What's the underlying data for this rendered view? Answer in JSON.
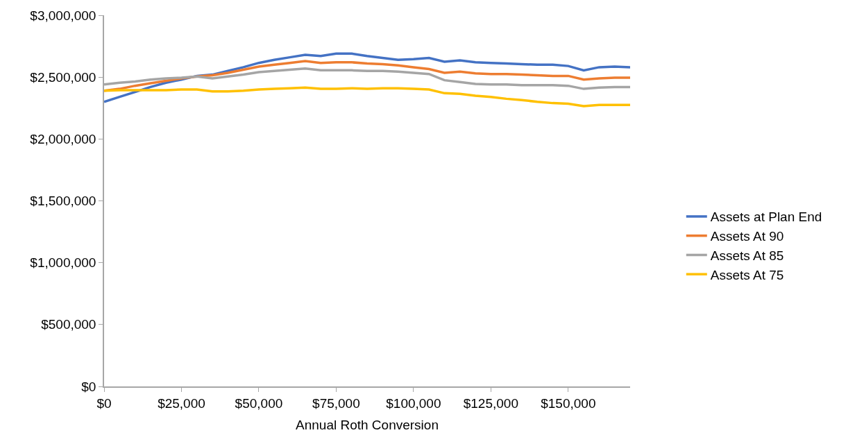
{
  "chart_data": {
    "type": "line",
    "xlabel": "Annual Roth Conversion",
    "x": [
      0,
      5000,
      10000,
      15000,
      20000,
      25000,
      30000,
      35000,
      40000,
      45000,
      50000,
      55000,
      60000,
      65000,
      70000,
      75000,
      80000,
      85000,
      90000,
      95000,
      100000,
      105000,
      110000,
      115000,
      120000,
      125000,
      130000,
      135000,
      140000,
      145000,
      150000,
      155000,
      160000,
      165000,
      170000
    ],
    "series": [
      {
        "name": "Assets at Plan End",
        "color": "#4472c4",
        "values": [
          2300000,
          2340000,
          2380000,
          2420000,
          2455000,
          2480000,
          2510000,
          2520000,
          2550000,
          2580000,
          2615000,
          2640000,
          2660000,
          2680000,
          2670000,
          2690000,
          2690000,
          2670000,
          2655000,
          2640000,
          2645000,
          2655000,
          2625000,
          2635000,
          2620000,
          2615000,
          2610000,
          2605000,
          2600000,
          2600000,
          2590000,
          2555000,
          2580000,
          2585000,
          2580000
        ]
      },
      {
        "name": "Assets At 90",
        "color": "#ed7d31",
        "values": [
          2390000,
          2405000,
          2430000,
          2450000,
          2470000,
          2490000,
          2505000,
          2515000,
          2535000,
          2560000,
          2585000,
          2600000,
          2615000,
          2630000,
          2615000,
          2620000,
          2620000,
          2610000,
          2605000,
          2595000,
          2580000,
          2565000,
          2535000,
          2545000,
          2530000,
          2525000,
          2525000,
          2520000,
          2515000,
          2510000,
          2510000,
          2480000,
          2490000,
          2495000,
          2495000
        ]
      },
      {
        "name": "Assets At 85",
        "color": "#a5a5a5",
        "values": [
          2440000,
          2455000,
          2465000,
          2480000,
          2490000,
          2495000,
          2505000,
          2490000,
          2505000,
          2520000,
          2540000,
          2550000,
          2560000,
          2570000,
          2555000,
          2555000,
          2555000,
          2550000,
          2550000,
          2545000,
          2535000,
          2525000,
          2475000,
          2460000,
          2445000,
          2440000,
          2440000,
          2435000,
          2435000,
          2435000,
          2430000,
          2405000,
          2415000,
          2420000,
          2420000
        ]
      },
      {
        "name": "Assets At 75",
        "color": "#ffc000",
        "values": [
          2390000,
          2395000,
          2395000,
          2395000,
          2395000,
          2400000,
          2400000,
          2385000,
          2385000,
          2390000,
          2400000,
          2405000,
          2410000,
          2415000,
          2405000,
          2405000,
          2410000,
          2405000,
          2410000,
          2410000,
          2405000,
          2400000,
          2370000,
          2365000,
          2350000,
          2340000,
          2325000,
          2315000,
          2300000,
          2290000,
          2285000,
          2265000,
          2275000,
          2275000,
          2275000
        ]
      }
    ],
    "xlim": [
      0,
      170000
    ],
    "xticks": [
      {
        "value": 0,
        "label": "$0"
      },
      {
        "value": 25000,
        "label": "$25,000"
      },
      {
        "value": 50000,
        "label": "$50,000"
      },
      {
        "value": 75000,
        "label": "$75,000"
      },
      {
        "value": 100000,
        "label": "$100,000"
      },
      {
        "value": 125000,
        "label": "$125,000"
      },
      {
        "value": 150000,
        "label": "$150,000"
      }
    ],
    "ylim": [
      0,
      3000000
    ],
    "yticks": [
      {
        "value": 0,
        "label": "$0"
      },
      {
        "value": 500000,
        "label": "$500,000"
      },
      {
        "value": 1000000,
        "label": "$1,000,000"
      },
      {
        "value": 1500000,
        "label": "$1,500,000"
      },
      {
        "value": 2000000,
        "label": "$2,000,000"
      },
      {
        "value": 2500000,
        "label": "$2,500,000"
      },
      {
        "value": 3000000,
        "label": "$3,000,000"
      }
    ],
    "grid": false,
    "legend": "right",
    "marker": "none",
    "line_style": "solid"
  }
}
